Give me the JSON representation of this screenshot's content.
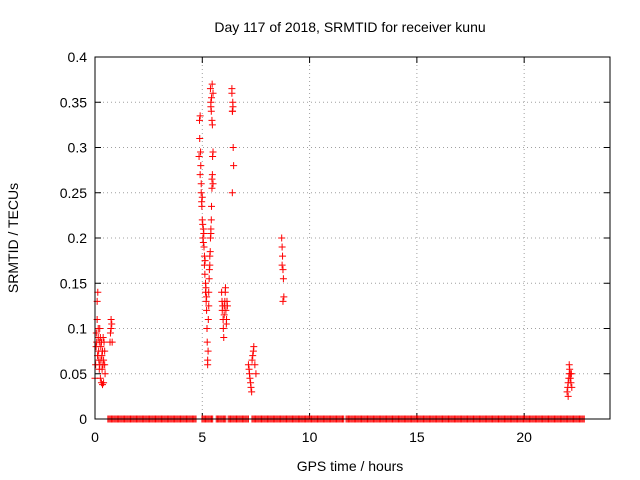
{
  "chart_data": {
    "type": "scatter",
    "title": "Day 117 of 2018, SRMTID for receiver kunu",
    "xlabel": "GPS time / hours",
    "ylabel": "SRMTID / TECUs",
    "xlim": [
      0,
      24
    ],
    "ylim": [
      0,
      0.4
    ],
    "xticks": [
      0,
      5,
      10,
      15,
      20
    ],
    "xtick_labels": [
      "0",
      "5",
      "10",
      "15",
      "20"
    ],
    "yticks": [
      0,
      0.05,
      0.1,
      0.15,
      0.2,
      0.25,
      0.3,
      0.35,
      0.4
    ],
    "ytick_labels": [
      "0",
      "0.05",
      "0.1",
      "0.15",
      "0.2",
      "0.25",
      "0.3",
      "0.35",
      "0.4"
    ],
    "grid": true,
    "marker": "+",
    "color": "#ff0000",
    "zero_band": {
      "x_start": 0.6,
      "x_end": 22.8,
      "gaps": [
        [
          4.75,
          4.95
        ],
        [
          5.5,
          5.6
        ],
        [
          6.1,
          6.2
        ],
        [
          7.2,
          7.3
        ],
        [
          11.6,
          11.7
        ]
      ]
    },
    "series": [
      {
        "name": "SRMTID",
        "x": [
          0.0,
          0.03,
          0.05,
          0.06,
          0.08,
          0.1,
          0.1,
          0.12,
          0.13,
          0.15,
          0.15,
          0.17,
          0.18,
          0.2,
          0.2,
          0.22,
          0.22,
          0.25,
          0.25,
          0.27,
          0.28,
          0.3,
          0.3,
          0.32,
          0.33,
          0.35,
          0.35,
          0.37,
          0.38,
          0.4,
          0.4,
          0.42,
          0.45,
          0.45,
          0.47,
          0.7,
          0.72,
          0.75,
          0.75,
          0.78,
          0.8,
          4.85,
          4.87,
          4.88,
          4.9,
          4.9,
          4.92,
          4.93,
          4.95,
          4.95,
          4.97,
          4.98,
          5.0,
          5.0,
          5.02,
          5.03,
          5.05,
          5.05,
          5.07,
          5.08,
          5.1,
          5.1,
          5.12,
          5.13,
          5.15,
          5.15,
          5.17,
          5.18,
          5.2,
          5.2,
          5.22,
          5.23,
          5.25,
          5.25,
          5.27,
          5.28,
          5.3,
          5.3,
          5.32,
          5.33,
          5.35,
          5.35,
          5.37,
          5.38,
          5.4,
          5.4,
          5.42,
          5.43,
          5.45,
          5.45,
          5.47,
          5.48,
          5.5,
          5.5,
          5.38,
          5.4,
          5.42,
          5.45,
          5.47,
          5.5,
          5.4,
          5.43,
          5.46,
          5.9,
          5.92,
          5.93,
          5.95,
          5.97,
          5.98,
          6.0,
          6.02,
          6.03,
          6.05,
          6.07,
          6.08,
          6.1,
          6.12,
          6.13,
          6.15,
          6.17,
          6.38,
          6.4,
          6.42,
          6.44,
          6.46,
          6.4,
          6.43,
          6.38,
          6.41,
          7.15,
          7.18,
          7.2,
          7.22,
          7.25,
          7.27,
          7.3,
          7.32,
          7.35,
          7.38,
          7.4,
          7.45,
          7.5,
          8.7,
          8.72,
          8.74,
          8.76,
          8.78,
          8.8,
          8.72,
          8.76,
          22.0,
          22.03,
          22.05,
          22.08,
          22.1,
          22.12,
          22.15,
          22.18,
          22.2,
          22.22,
          22.1,
          22.05,
          22.15
        ],
        "y": [
          0.045,
          0.06,
          0.08,
          0.095,
          0.085,
          0.11,
          0.13,
          0.07,
          0.14,
          0.09,
          0.1,
          0.075,
          0.065,
          0.085,
          0.055,
          0.1,
          0.06,
          0.09,
          0.045,
          0.08,
          0.065,
          0.04,
          0.085,
          0.07,
          0.055,
          0.075,
          0.038,
          0.06,
          0.09,
          0.065,
          0.04,
          0.085,
          0.06,
          0.075,
          0.05,
          0.085,
          0.095,
          0.1,
          0.11,
          0.105,
          0.085,
          0.29,
          0.33,
          0.31,
          0.335,
          0.27,
          0.295,
          0.28,
          0.26,
          0.25,
          0.24,
          0.235,
          0.245,
          0.22,
          0.215,
          0.2,
          0.21,
          0.195,
          0.205,
          0.19,
          0.18,
          0.17,
          0.16,
          0.175,
          0.15,
          0.14,
          0.145,
          0.13,
          0.12,
          0.135,
          0.1,
          0.085,
          0.065,
          0.06,
          0.075,
          0.11,
          0.125,
          0.14,
          0.155,
          0.165,
          0.17,
          0.18,
          0.185,
          0.2,
          0.21,
          0.205,
          0.22,
          0.235,
          0.255,
          0.265,
          0.27,
          0.29,
          0.295,
          0.26,
          0.365,
          0.35,
          0.34,
          0.33,
          0.325,
          0.36,
          0.345,
          0.355,
          0.37,
          0.14,
          0.13,
          0.12,
          0.125,
          0.11,
          0.1,
          0.09,
          0.115,
          0.125,
          0.13,
          0.14,
          0.145,
          0.12,
          0.105,
          0.11,
          0.13,
          0.125,
          0.36,
          0.34,
          0.35,
          0.3,
          0.28,
          0.25,
          0.345,
          0.365,
          0.34,
          0.06,
          0.055,
          0.05,
          0.045,
          0.04,
          0.035,
          0.03,
          0.065,
          0.07,
          0.075,
          0.08,
          0.06,
          0.05,
          0.2,
          0.19,
          0.18,
          0.165,
          0.155,
          0.135,
          0.17,
          0.13,
          0.03,
          0.035,
          0.04,
          0.045,
          0.05,
          0.055,
          0.045,
          0.04,
          0.05,
          0.035,
          0.06,
          0.025,
          0.05
        ]
      }
    ]
  }
}
